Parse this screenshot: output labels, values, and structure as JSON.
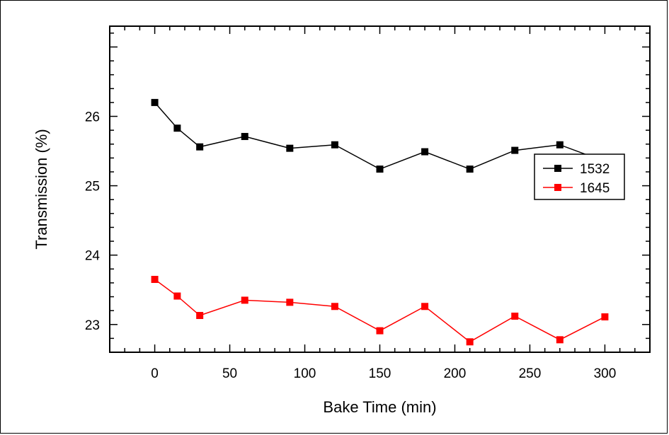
{
  "chart_data": {
    "type": "line",
    "title": "",
    "xlabel": "Bake Time (min)",
    "ylabel": "Transmission (%)",
    "xlim": [
      -30,
      330
    ],
    "ylim": [
      22.6,
      27.3
    ],
    "xticks": [
      0,
      50,
      100,
      150,
      200,
      250,
      300
    ],
    "xtick_labels": [
      "0",
      "50",
      "100",
      "150",
      "200",
      "250",
      "300"
    ],
    "yticks": [
      23,
      24,
      25,
      26
    ],
    "ytick_labels": [
      "23",
      "24",
      "25",
      "26"
    ],
    "x_minor_step": 10,
    "y_minor_step": 0.2,
    "grid": false,
    "legend_position": "right",
    "x": [
      0,
      15,
      30,
      60,
      90,
      120,
      150,
      180,
      210,
      240,
      270,
      300
    ],
    "series": [
      {
        "name": "1532",
        "color": "#000000",
        "marker": "square",
        "values": [
          26.2,
          25.83,
          25.56,
          25.71,
          25.54,
          25.59,
          25.24,
          25.49,
          25.24,
          25.51,
          25.59,
          25.35
        ]
      },
      {
        "name": "1645",
        "color": "#ff0000",
        "marker": "square",
        "values": [
          23.65,
          23.41,
          23.13,
          23.35,
          23.32,
          23.26,
          22.91,
          23.26,
          22.75,
          23.12,
          22.78,
          23.11
        ]
      }
    ]
  }
}
